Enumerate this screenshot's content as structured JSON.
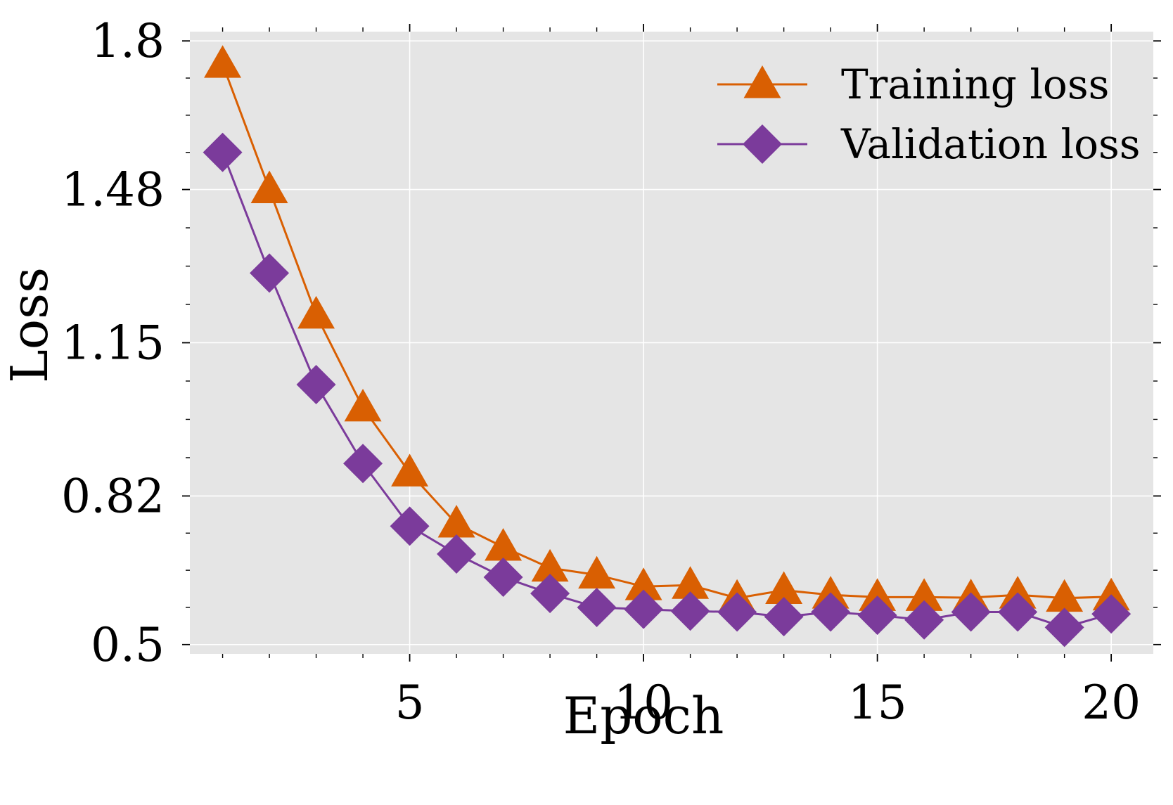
{
  "chart_data": {
    "type": "line",
    "title": "",
    "xlabel": "Epoch",
    "ylabel": "Loss",
    "xlim": [
      0.3,
      20.9
    ],
    "ylim": [
      0.48,
      1.82
    ],
    "xticks": [
      5,
      10,
      15,
      20
    ],
    "xtick_labels": [
      "5",
      "10",
      "15",
      "20"
    ],
    "yticks": [
      0.5,
      0.82,
      1.15,
      1.48,
      1.8
    ],
    "ytick_labels": [
      "0.5",
      "0.82",
      "1.15",
      "1.48",
      "1.8"
    ],
    "grid": true,
    "legend_position": "top-right",
    "background": "#e5e5e5",
    "x": [
      1,
      2,
      3,
      4,
      5,
      6,
      7,
      8,
      9,
      10,
      11,
      12,
      13,
      14,
      15,
      16,
      17,
      18,
      19,
      20
    ],
    "series": [
      {
        "name": "Training loss",
        "marker": "triangle-up",
        "color": "#d95f02",
        "values": [
          1.75,
          1.48,
          1.21,
          1.01,
          0.87,
          0.76,
          0.71,
          0.665,
          0.65,
          0.625,
          0.628,
          0.6,
          0.617,
          0.607,
          0.602,
          0.602,
          0.601,
          0.607,
          0.6,
          0.603
        ]
      },
      {
        "name": "Validation loss",
        "marker": "diamond",
        "color": "#7b3b9b",
        "values": [
          1.56,
          1.3,
          1.06,
          0.89,
          0.755,
          0.695,
          0.645,
          0.61,
          0.58,
          0.576,
          0.572,
          0.57,
          0.56,
          0.57,
          0.563,
          0.553,
          0.57,
          0.57,
          0.537,
          0.566
        ]
      }
    ]
  }
}
